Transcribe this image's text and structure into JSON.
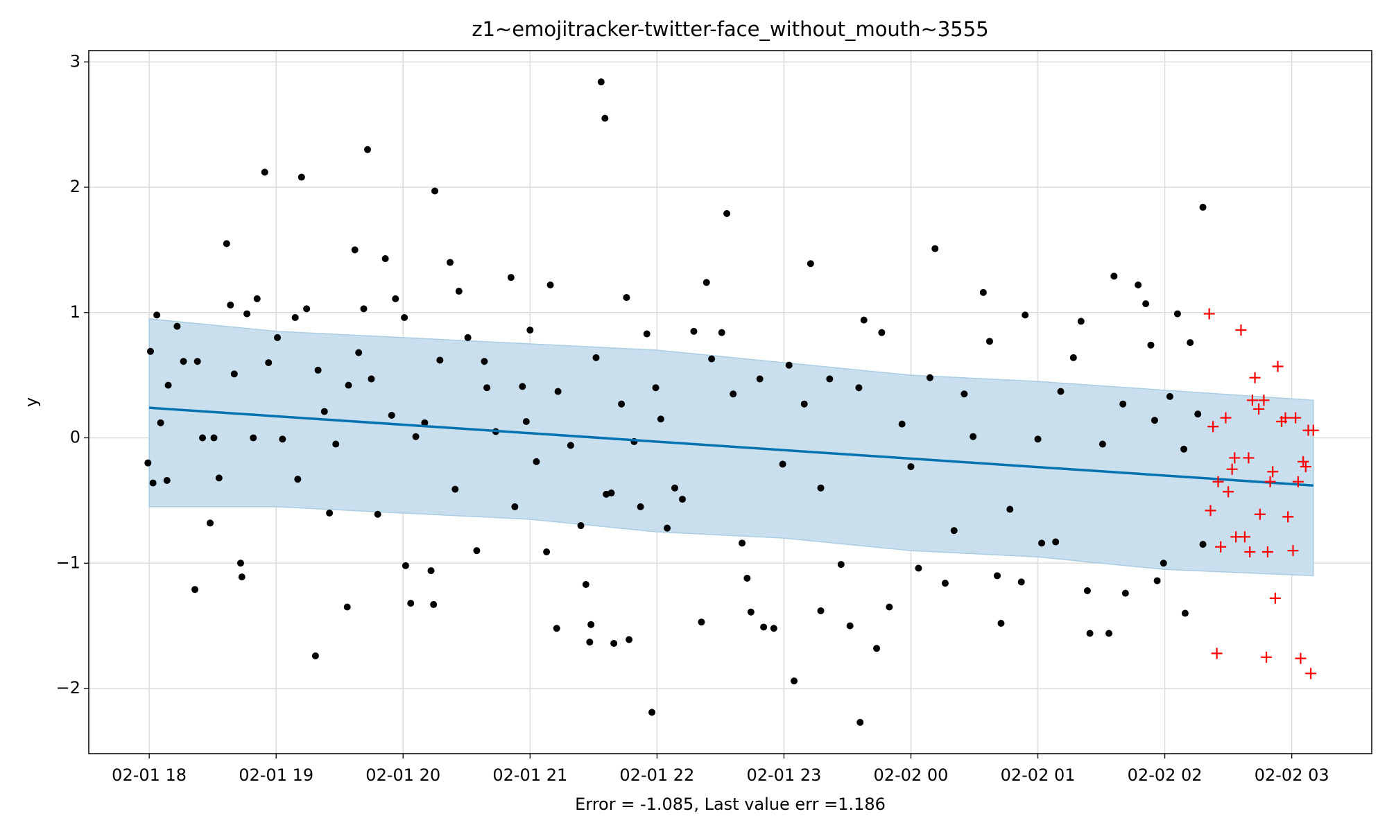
{
  "chart_data": {
    "type": "scatter",
    "title": "z1~emojitracker-twitter-face_without_mouth~3555",
    "x_label": "Error = -1.085, Last value err =1.186",
    "y_label": "y",
    "xlim": [
      -0.476,
      9.63
    ],
    "ylim": [
      -2.52,
      3.09
    ],
    "xticks": [
      {
        "value": 0,
        "label": "02-01 18"
      },
      {
        "value": 1,
        "label": "02-01 19"
      },
      {
        "value": 2,
        "label": "02-01 20"
      },
      {
        "value": 3,
        "label": "02-01 21"
      },
      {
        "value": 4,
        "label": "02-01 22"
      },
      {
        "value": 5,
        "label": "02-01 23"
      },
      {
        "value": 6,
        "label": "02-02 00"
      },
      {
        "value": 7,
        "label": "02-02 01"
      },
      {
        "value": 8,
        "label": "02-02 02"
      },
      {
        "value": 9,
        "label": "02-02 03"
      }
    ],
    "yticks": [
      {
        "value": -2,
        "label": "−2"
      },
      {
        "value": -1,
        "label": "−1"
      },
      0,
      1,
      2,
      3
    ],
    "grid": true,
    "band": {
      "color": "#c9dfee",
      "x": [
        0,
        1,
        2,
        3,
        4,
        5,
        6,
        7,
        8,
        9.17
      ],
      "upper": [
        0.95,
        0.85,
        0.8,
        0.75,
        0.7,
        0.6,
        0.5,
        0.45,
        0.38,
        0.3
      ],
      "lower": [
        -0.55,
        -0.55,
        -0.6,
        -0.65,
        -0.75,
        -0.8,
        -0.9,
        -0.95,
        -1.05,
        -1.1
      ]
    },
    "trend": {
      "color": "#0072b2",
      "x": [
        0,
        9.17
      ],
      "y": [
        0.24,
        -0.38
      ]
    },
    "points": {
      "color": "#000000",
      "x": [
        -0.01,
        0.01,
        0.06,
        0.03,
        0.09,
        0.14,
        0.15,
        0.22,
        0.36,
        0.27,
        0.38,
        0.42,
        0.48,
        0.51,
        0.55,
        0.61,
        0.64,
        0.67,
        0.72,
        0.73,
        0.77,
        0.82,
        0.85,
        0.91,
        0.94,
        1.01,
        1.05,
        1.15,
        1.17,
        1.2,
        1.24,
        1.31,
        1.33,
        1.38,
        1.42,
        1.47,
        1.56,
        1.57,
        1.62,
        1.65,
        1.69,
        1.72,
        1.75,
        1.8,
        1.86,
        1.91,
        1.94,
        2.01,
        2.02,
        2.06,
        2.1,
        2.17,
        2.22,
        2.25,
        2.24,
        2.29,
        2.37,
        2.41,
        2.44,
        2.51,
        2.58,
        2.64,
        2.66,
        2.73,
        2.85,
        2.88,
        2.94,
        3.0,
        2.97,
        3.05,
        3.13,
        3.16,
        3.21,
        3.22,
        3.32,
        3.4,
        3.44,
        3.48,
        3.47,
        3.56,
        3.59,
        3.52,
        3.6,
        3.64,
        3.66,
        3.72,
        3.76,
        3.78,
        3.82,
        3.87,
        3.92,
        3.96,
        3.99,
        4.03,
        4.08,
        4.14,
        4.2,
        4.29,
        4.35,
        4.39,
        4.43,
        4.55,
        4.51,
        4.6,
        4.67,
        4.71,
        4.74,
        4.81,
        4.84,
        4.92,
        4.99,
        5.04,
        5.08,
        5.16,
        5.21,
        5.29,
        5.29,
        5.36,
        5.45,
        5.52,
        5.59,
        5.63,
        5.6,
        5.73,
        5.77,
        5.83,
        5.93,
        6.0,
        6.06,
        6.15,
        6.19,
        6.27,
        6.34,
        6.42,
        6.49,
        6.57,
        6.62,
        6.68,
        6.71,
        6.78,
        6.87,
        6.9,
        7.0,
        7.03,
        7.14,
        7.18,
        7.28,
        7.34,
        7.39,
        7.41,
        7.51,
        7.56,
        7.6,
        7.67,
        7.69,
        7.79,
        7.85,
        7.89,
        7.92,
        7.94,
        7.99,
        8.04,
        8.1,
        8.15,
        8.16,
        8.2,
        8.26,
        8.3,
        8.3
      ],
      "y": [
        -0.2,
        0.69,
        0.98,
        -0.36,
        0.12,
        -0.34,
        0.42,
        0.89,
        -1.21,
        0.61,
        0.61,
        0.0,
        -0.68,
        0.0,
        -0.32,
        1.55,
        1.06,
        0.51,
        -1.0,
        -1.11,
        0.99,
        0.0,
        1.11,
        2.12,
        0.6,
        0.8,
        -0.01,
        0.96,
        -0.33,
        2.08,
        1.03,
        -1.74,
        0.54,
        0.21,
        -0.6,
        -0.05,
        -1.35,
        0.42,
        1.5,
        0.68,
        1.03,
        2.3,
        0.47,
        -0.61,
        1.43,
        0.18,
        1.11,
        0.96,
        -1.02,
        -1.32,
        0.01,
        0.12,
        -1.06,
        1.97,
        -1.33,
        0.62,
        1.4,
        -0.41,
        1.17,
        0.8,
        -0.9,
        0.61,
        0.4,
        0.05,
        1.28,
        -0.55,
        0.41,
        0.86,
        0.13,
        -0.19,
        -0.91,
        1.22,
        -1.52,
        0.37,
        -0.06,
        -0.7,
        -1.17,
        -1.49,
        -1.63,
        2.84,
        2.55,
        0.64,
        -0.45,
        -0.44,
        -1.64,
        0.27,
        1.12,
        -1.61,
        -0.03,
        -0.55,
        0.83,
        -2.19,
        0.4,
        0.15,
        -0.72,
        -0.4,
        -0.49,
        0.85,
        -1.47,
        1.24,
        0.63,
        1.79,
        0.84,
        0.35,
        -0.84,
        -1.12,
        -1.39,
        0.47,
        -1.51,
        -1.52,
        -0.21,
        0.58,
        -1.94,
        0.27,
        1.39,
        -0.4,
        -1.38,
        0.47,
        -1.01,
        -1.5,
        0.4,
        0.94,
        -2.27,
        -1.68,
        0.84,
        -1.35,
        0.11,
        -0.23,
        -1.04,
        0.48,
        1.51,
        -1.16,
        -0.74,
        0.35,
        0.01,
        1.16,
        0.77,
        -1.1,
        -1.48,
        -0.57,
        -1.15,
        0.98,
        -0.01,
        -0.84,
        -0.83,
        0.37,
        0.64,
        0.93,
        -1.22,
        -1.56,
        -0.05,
        -1.56,
        1.29,
        0.27,
        -1.24,
        1.22,
        1.07,
        0.74,
        0.14,
        -1.14,
        -1.0,
        0.33,
        0.99,
        -0.09,
        -1.4,
        0.76,
        0.19,
        -0.85,
        1.84
      ]
    },
    "anomalies": {
      "color": "#ff0000",
      "x": [
        8.35,
        8.38,
        8.36,
        8.41,
        8.44,
        8.48,
        8.5,
        8.55,
        8.56,
        8.6,
        8.63,
        8.66,
        8.69,
        8.71,
        8.74,
        8.75,
        8.78,
        8.8,
        8.83,
        8.85,
        8.87,
        8.89,
        8.92,
        8.95,
        8.97,
        9.01,
        9.03,
        9.05,
        9.07,
        9.09,
        9.11,
        9.13,
        9.15,
        9.17,
        8.42,
        8.53,
        8.67,
        8.81
      ],
      "y": [
        0.99,
        0.09,
        -0.58,
        -1.72,
        -0.87,
        0.16,
        -0.43,
        -0.16,
        -0.79,
        0.86,
        -0.79,
        -0.16,
        0.3,
        0.48,
        0.23,
        -0.61,
        0.3,
        -1.75,
        -0.35,
        -0.27,
        -1.28,
        0.57,
        0.13,
        0.16,
        -0.63,
        -0.9,
        0.16,
        -0.35,
        -1.76,
        -0.19,
        -0.23,
        0.06,
        -1.88,
        0.06,
        -0.35,
        -0.25,
        -0.91,
        -0.91
      ]
    }
  }
}
